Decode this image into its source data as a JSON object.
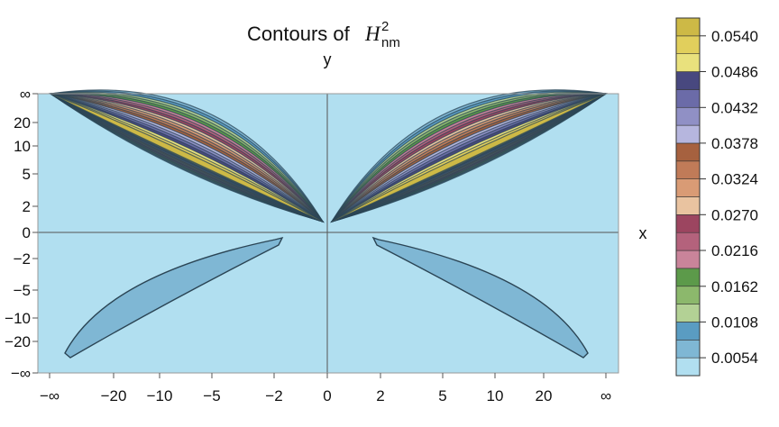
{
  "chart_data": {
    "type": "contour",
    "title": {
      "prefix": "Contours of",
      "symbol": "H",
      "superscript": "2",
      "subscript": "nm"
    },
    "xlabel": "x",
    "ylabel": "y",
    "x_ticks": [
      "−∞",
      "−20",
      "−10",
      "−5",
      "−2",
      "0",
      "2",
      "5",
      "10",
      "20",
      "∞"
    ],
    "y_ticks": [
      "∞",
      "20",
      "10",
      "5",
      "2",
      "0",
      "−2",
      "−5",
      "−10",
      "−20",
      "−∞"
    ],
    "colorbar": {
      "labels": [
        "0.0540",
        "0.0486",
        "0.0432",
        "0.0378",
        "0.0324",
        "0.0270",
        "0.0216",
        "0.0162",
        "0.0108",
        "0.0054"
      ],
      "level_step": 0.0027,
      "colors": [
        "#b1dff0",
        "#7fb7d4",
        "#5a9cc2",
        "#b3d195",
        "#8cb86c",
        "#5c9a4a",
        "#c9849a",
        "#b4627c",
        "#9c4560",
        "#e9c3a0",
        "#d99b75",
        "#c07b58",
        "#a6613f",
        "#b6b6de",
        "#9090c5",
        "#6b6ba8",
        "#48487f",
        "#e9e17d",
        "#e1cf5c",
        "#cdb946"
      ]
    },
    "grid": false
  }
}
